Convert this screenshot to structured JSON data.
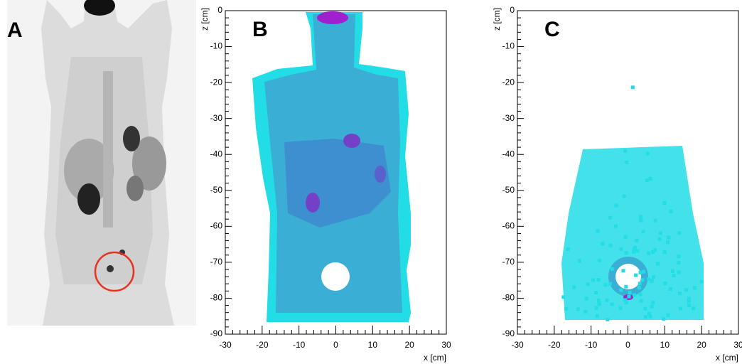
{
  "image_panel": {
    "label": "A"
  },
  "chart_data": [
    {
      "type": "heatmap",
      "panel_label": "B",
      "xlabel": "x [cm]",
      "ylabel": "z [cm]",
      "xlim": [
        -30,
        30
      ],
      "ylim": [
        -90,
        0
      ],
      "xticks": [
        -30,
        -20,
        -10,
        0,
        10,
        20,
        30
      ],
      "yticks": [
        0,
        -10,
        -20,
        -30,
        -40,
        -50,
        -60,
        -70,
        -80,
        -90
      ]
    },
    {
      "type": "heatmap",
      "panel_label": "C",
      "xlabel": "x [cm]",
      "ylabel": "z [cm]",
      "xlim": [
        -30,
        30
      ],
      "ylim": [
        -90,
        0
      ],
      "xticks": [
        -30,
        -20,
        -10,
        0,
        10,
        20,
        30
      ],
      "yticks": [
        0,
        -10,
        -20,
        -30,
        -40,
        -50,
        -60,
        -70,
        -80,
        -90
      ]
    }
  ]
}
